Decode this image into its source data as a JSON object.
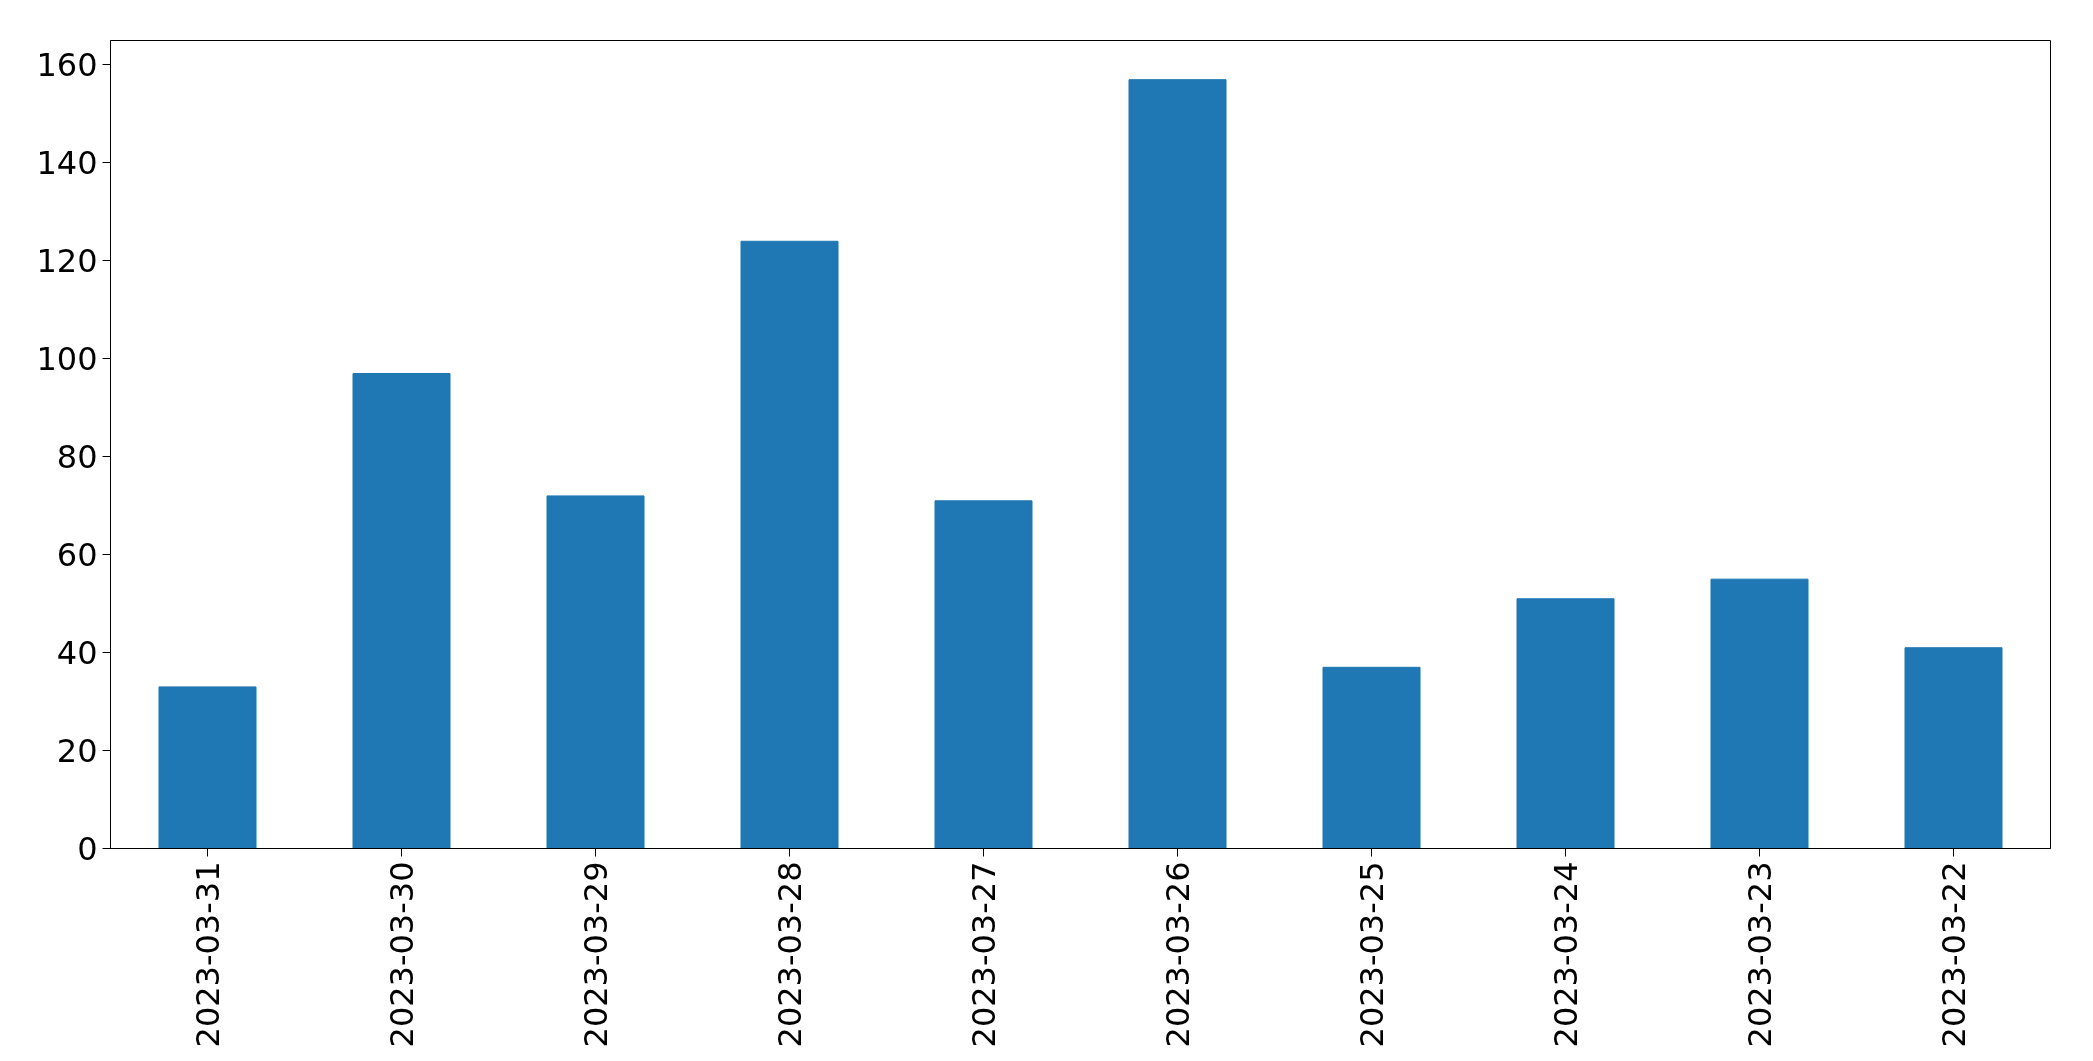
{
  "chart_data": {
    "type": "bar",
    "categories": [
      "2023-03-31",
      "2023-03-30",
      "2023-03-29",
      "2023-03-28",
      "2023-03-27",
      "2023-03-26",
      "2023-03-25",
      "2023-03-24",
      "2023-03-23",
      "2023-03-22"
    ],
    "values": [
      33,
      97,
      72,
      124,
      71,
      157,
      37,
      51,
      55,
      41
    ],
    "color": "#1f77b4",
    "ylim": [
      0,
      165
    ],
    "yticks": [
      0,
      20,
      40,
      60,
      80,
      100,
      120,
      140,
      160
    ],
    "grid": false
  }
}
